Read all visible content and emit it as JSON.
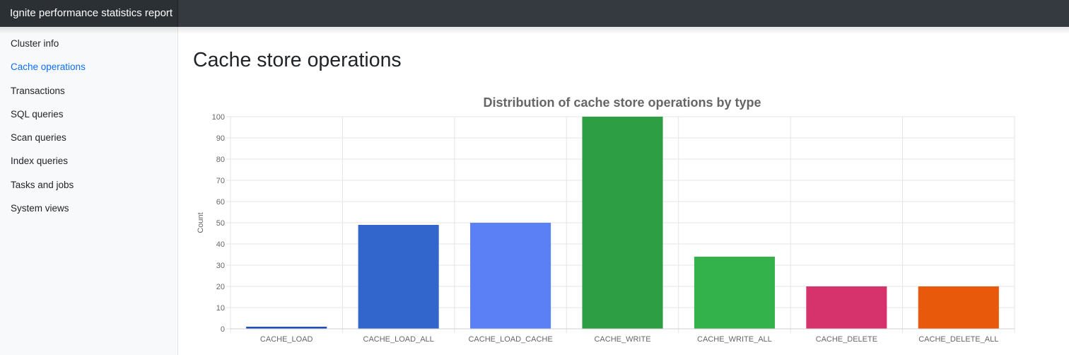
{
  "app": {
    "title": "Ignite performance statistics report"
  },
  "sidebar": {
    "items": [
      {
        "label": "Cluster info",
        "active": false
      },
      {
        "label": "Cache operations",
        "active": true
      },
      {
        "label": "Transactions",
        "active": false
      },
      {
        "label": "SQL queries",
        "active": false
      },
      {
        "label": "Scan queries",
        "active": false
      },
      {
        "label": "Index queries",
        "active": false
      },
      {
        "label": "Tasks and jobs",
        "active": false
      },
      {
        "label": "System views",
        "active": false
      }
    ]
  },
  "main": {
    "title": "Cache store operations"
  },
  "colors": {
    "navbar": "#343a40",
    "sidebar": "#f8f9fa",
    "active_link": "#0d6efd",
    "grid": "#e5e5e5",
    "axis_text": "#666666"
  },
  "chart_data": {
    "type": "bar",
    "title": "Distribution of cache store operations by type",
    "xlabel": "",
    "ylabel": "Count",
    "ylim": [
      0,
      100
    ],
    "y_ticks": [
      0,
      10,
      20,
      30,
      40,
      50,
      60,
      70,
      80,
      90,
      100
    ],
    "categories": [
      "CACHE_LOAD",
      "CACHE_LOAD_ALL",
      "CACHE_LOAD_CACHE",
      "CACHE_WRITE",
      "CACHE_WRITE_ALL",
      "CACHE_DELETE",
      "CACHE_DELETE_ALL"
    ],
    "values": [
      1,
      49,
      50,
      100,
      34,
      20,
      20
    ],
    "bar_colors": [
      "#1f4fb2",
      "#3366cc",
      "#5b7ff5",
      "#2e9e45",
      "#33b24c",
      "#d6336c",
      "#e8590c"
    ],
    "grid": true,
    "legend": "none"
  }
}
